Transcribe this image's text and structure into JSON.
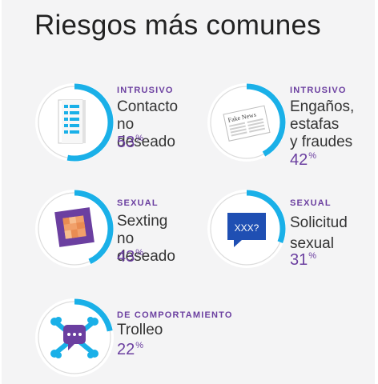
{
  "title": "Riesgos más comunes",
  "colors": {
    "accent": "#1ab0e8",
    "track": "#dcdcdc",
    "purple": "#6b3fa0",
    "text": "#333333"
  },
  "risks": [
    {
      "category": "INTRUSIVO",
      "label": "Contacto\nno deseado",
      "value": "53",
      "unit": "%",
      "fraction": 0.53,
      "icon": "contact-list-icon"
    },
    {
      "category": "INTRUSIVO",
      "label": "Engaños,\nestafas\ny fraudes",
      "value": "42",
      "unit": "%",
      "fraction": 0.42,
      "icon": "fake-news-icon"
    },
    {
      "category": "SEXUAL",
      "label": "Sexting\nno deseado",
      "value": "43",
      "unit": "%",
      "fraction": 0.43,
      "icon": "censored-photo-icon"
    },
    {
      "category": "SEXUAL",
      "label": "Solicitud\nsexual",
      "value": "31",
      "unit": "%",
      "fraction": 0.31,
      "icon": "chat-question-icon"
    },
    {
      "category": "DE COMPORTAMIENTO",
      "label": "Trolleo",
      "value": "22",
      "unit": "%",
      "fraction": 0.22,
      "icon": "troll-crossbones-icon"
    }
  ],
  "icon_text": {
    "newspaper": "Fake News",
    "speech": "XXX?"
  }
}
